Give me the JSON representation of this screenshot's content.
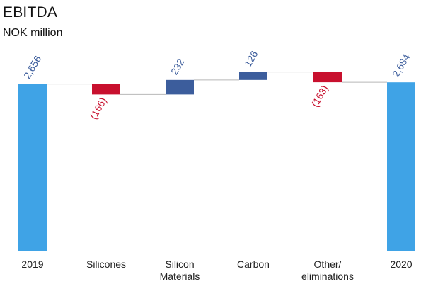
{
  "header": {
    "title": "EBITDA",
    "subtitle": "NOK million"
  },
  "chart_data": {
    "type": "waterfall",
    "title": "EBITDA",
    "subtitle": "NOK million",
    "unit": "NOK million",
    "categories": [
      "2019",
      "Silicones",
      "Silicon Materials",
      "Carbon",
      "Other/ eliminations",
      "2020"
    ],
    "category_lines": [
      [
        "2019"
      ],
      [
        "Silicones"
      ],
      [
        "Silicon",
        "Materials"
      ],
      [
        "Carbon"
      ],
      [
        "Other/",
        "eliminations"
      ],
      [
        "2020"
      ]
    ],
    "steps": [
      {
        "category": "2019",
        "kind": "total",
        "value": 2656,
        "label": "2,656"
      },
      {
        "category": "Silicones",
        "kind": "delta",
        "value": -166,
        "label": "(166)"
      },
      {
        "category": "Silicon Materials",
        "kind": "delta",
        "value": 232,
        "label": "232"
      },
      {
        "category": "Carbon",
        "kind": "delta",
        "value": 126,
        "label": "126"
      },
      {
        "category": "Other/ eliminations",
        "kind": "delta",
        "value": -163,
        "label": "(163)"
      },
      {
        "category": "2020",
        "kind": "total",
        "value": 2684,
        "label": "2,684"
      }
    ],
    "colors": {
      "total": "#3fa3e6",
      "increase": "#3c5d9c",
      "decrease": "#c8102e",
      "connector": "#b8b8b8",
      "axis_text": "#222222"
    }
  }
}
